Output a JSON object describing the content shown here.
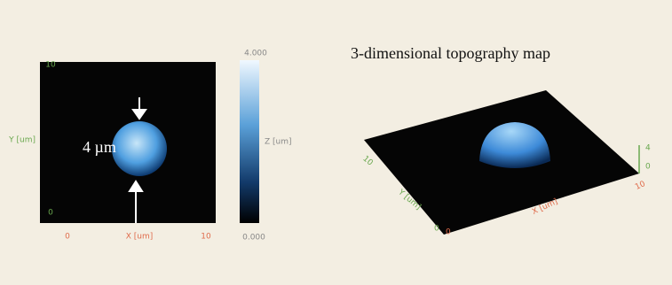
{
  "heatmap": {
    "yticks": [
      "10",
      "0"
    ],
    "ylabel": "Y [um]",
    "xticks": [
      "0",
      "10"
    ],
    "xlabel": "X [um]",
    "annotation": "4 µm",
    "colorbar": {
      "max": "4.000",
      "label": "Z [um]",
      "min": "0.000"
    }
  },
  "surface": {
    "title": "3-dimensional topography map",
    "yticks": [
      "10",
      "0"
    ],
    "ylabel": "Y [um]",
    "xticks": [
      "0",
      "10"
    ],
    "xlabel": "X [um]",
    "zticks": [
      "4",
      "0"
    ]
  }
}
